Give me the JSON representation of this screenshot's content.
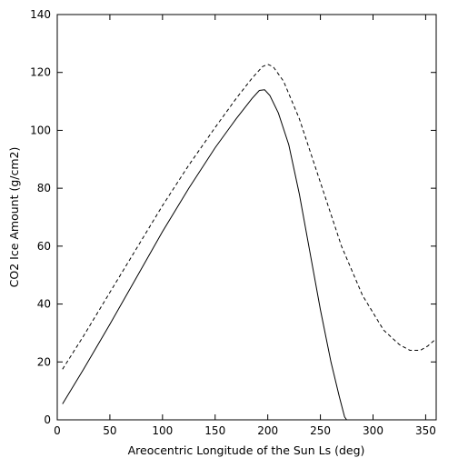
{
  "chart_data": {
    "type": "line",
    "title": "",
    "xlabel": "Areocentric Longitude of the Sun Ls (deg)",
    "ylabel": "CO2 Ice Amount (g/cm2)",
    "xlim": [
      0,
      360
    ],
    "ylim": [
      0,
      140
    ],
    "xticks": [
      0,
      50,
      100,
      150,
      200,
      250,
      300,
      350
    ],
    "yticks": [
      0,
      20,
      40,
      60,
      80,
      100,
      120,
      140
    ],
    "grid": false,
    "legend": "none",
    "series": [
      {
        "style": "dashed",
        "color": "#000000",
        "points": [
          [
            5,
            17.5
          ],
          [
            25,
            29
          ],
          [
            50,
            44
          ],
          [
            75,
            59
          ],
          [
            100,
            74
          ],
          [
            125,
            88
          ],
          [
            150,
            101
          ],
          [
            170,
            111
          ],
          [
            185,
            118
          ],
          [
            195,
            122
          ],
          [
            200,
            122.8
          ],
          [
            205,
            122
          ],
          [
            215,
            117
          ],
          [
            230,
            104
          ],
          [
            250,
            82
          ],
          [
            270,
            60
          ],
          [
            290,
            43
          ],
          [
            310,
            31
          ],
          [
            325,
            26
          ],
          [
            335,
            24
          ],
          [
            345,
            24
          ],
          [
            352,
            25.5
          ],
          [
            360,
            28
          ]
        ]
      },
      {
        "style": "solid",
        "color": "#000000",
        "points": [
          [
            5,
            5.5
          ],
          [
            25,
            17.5
          ],
          [
            50,
            33
          ],
          [
            75,
            49
          ],
          [
            100,
            65
          ],
          [
            125,
            80
          ],
          [
            150,
            94
          ],
          [
            170,
            104
          ],
          [
            185,
            111
          ],
          [
            192,
            113.8
          ],
          [
            197,
            114
          ],
          [
            202,
            112
          ],
          [
            210,
            106
          ],
          [
            220,
            95
          ],
          [
            230,
            78
          ],
          [
            240,
            58
          ],
          [
            250,
            38
          ],
          [
            260,
            20
          ],
          [
            268,
            8
          ],
          [
            273,
            1
          ],
          [
            275,
            0
          ]
        ]
      }
    ]
  }
}
